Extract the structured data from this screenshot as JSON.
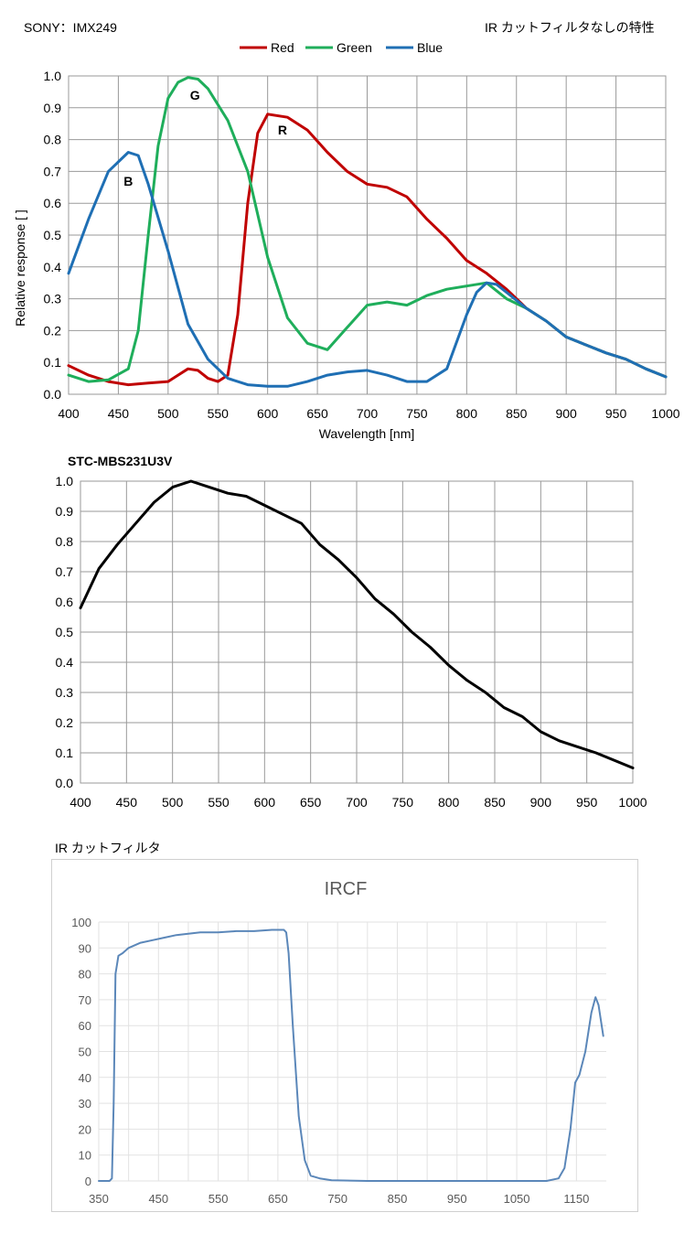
{
  "header": {
    "left": "SONY：IMX249",
    "right": "IR カットフィルタなしの特性"
  },
  "colors": {
    "red": "#c00000",
    "green": "#1fae5b",
    "blue": "#1f6fb4",
    "mono": "#000000",
    "ircf": "#5b87b9"
  },
  "chart_data": [
    {
      "type": "line",
      "title": "",
      "xlabel": "Wavelength [nm]",
      "ylabel": "Relative response [ ]",
      "xlim": [
        400,
        1000
      ],
      "ylim": [
        0,
        1.0
      ],
      "x_ticks": [
        "400",
        "450",
        "500",
        "550",
        "600",
        "650",
        "700",
        "750",
        "800",
        "850",
        "900",
        "950",
        "1000"
      ],
      "y_ticks": [
        "0.0",
        "0.1",
        "0.2",
        "0.3",
        "0.4",
        "0.5",
        "0.6",
        "0.7",
        "0.8",
        "0.9",
        "1.0"
      ],
      "grid": true,
      "legend": "top-center",
      "series": [
        {
          "name": "Red",
          "color": "#c00000",
          "x": [
            400,
            420,
            440,
            460,
            480,
            500,
            510,
            520,
            530,
            540,
            550,
            560,
            570,
            580,
            590,
            600,
            620,
            640,
            660,
            680,
            700,
            720,
            740,
            760,
            780,
            800,
            820,
            840,
            860,
            880,
            900,
            920,
            940,
            960,
            980,
            1000
          ],
          "y": [
            0.09,
            0.06,
            0.04,
            0.03,
            0.035,
            0.04,
            0.06,
            0.08,
            0.075,
            0.05,
            0.04,
            0.06,
            0.25,
            0.6,
            0.82,
            0.88,
            0.87,
            0.83,
            0.76,
            0.7,
            0.66,
            0.65,
            0.62,
            0.55,
            0.49,
            0.42,
            0.38,
            0.33,
            0.27,
            0.23,
            0.18,
            0.155,
            0.13,
            0.11,
            0.08,
            0.055
          ]
        },
        {
          "name": "Green",
          "color": "#1fae5b",
          "x": [
            400,
            420,
            440,
            460,
            470,
            480,
            490,
            500,
            510,
            520,
            530,
            540,
            560,
            580,
            600,
            620,
            640,
            660,
            680,
            700,
            720,
            740,
            760,
            780,
            800,
            820,
            840,
            860,
            880,
            900,
            920,
            940,
            960,
            980,
            1000
          ],
          "y": [
            0.06,
            0.04,
            0.045,
            0.08,
            0.2,
            0.5,
            0.78,
            0.93,
            0.98,
            0.995,
            0.99,
            0.96,
            0.86,
            0.7,
            0.43,
            0.24,
            0.16,
            0.14,
            0.21,
            0.28,
            0.29,
            0.28,
            0.31,
            0.33,
            0.34,
            0.35,
            0.3,
            0.27,
            0.23,
            0.18,
            0.155,
            0.13,
            0.11,
            0.08,
            0.055
          ]
        },
        {
          "name": "Blue",
          "color": "#1f6fb4",
          "x": [
            400,
            420,
            440,
            460,
            470,
            480,
            500,
            520,
            540,
            560,
            580,
            600,
            620,
            640,
            660,
            680,
            700,
            720,
            740,
            760,
            780,
            800,
            810,
            820,
            830,
            840,
            860,
            880,
            900,
            920,
            940,
            960,
            980,
            1000
          ],
          "y": [
            0.38,
            0.55,
            0.7,
            0.76,
            0.75,
            0.66,
            0.45,
            0.22,
            0.11,
            0.05,
            0.03,
            0.025,
            0.025,
            0.04,
            0.06,
            0.07,
            0.075,
            0.06,
            0.04,
            0.04,
            0.08,
            0.25,
            0.32,
            0.35,
            0.345,
            0.32,
            0.27,
            0.23,
            0.18,
            0.155,
            0.13,
            0.11,
            0.08,
            0.055
          ]
        }
      ],
      "annotations": [
        {
          "text": "G",
          "x": 527,
          "y": 0.94
        },
        {
          "text": "R",
          "x": 615,
          "y": 0.83
        },
        {
          "text": "B",
          "x": 460,
          "y": 0.67
        }
      ]
    },
    {
      "type": "line",
      "title": "STC-MBS231U3V",
      "xlim": [
        400,
        1000
      ],
      "ylim": [
        0,
        1.0
      ],
      "x_ticks": [
        "400",
        "450",
        "500",
        "550",
        "600",
        "650",
        "700",
        "750",
        "800",
        "850",
        "900",
        "950",
        "1000"
      ],
      "y_ticks": [
        "0.0",
        "0.1",
        "0.2",
        "0.3",
        "0.4",
        "0.5",
        "0.6",
        "0.7",
        "0.8",
        "0.9",
        "1.0"
      ],
      "grid": true,
      "series": [
        {
          "name": "",
          "color": "#000000",
          "x": [
            400,
            420,
            440,
            460,
            480,
            500,
            520,
            540,
            560,
            580,
            600,
            620,
            640,
            660,
            680,
            700,
            720,
            740,
            760,
            780,
            800,
            820,
            840,
            860,
            880,
            900,
            920,
            940,
            960,
            980,
            1000
          ],
          "y": [
            0.58,
            0.71,
            0.79,
            0.86,
            0.93,
            0.98,
            1.0,
            0.98,
            0.96,
            0.95,
            0.92,
            0.89,
            0.86,
            0.79,
            0.74,
            0.68,
            0.61,
            0.56,
            0.5,
            0.45,
            0.39,
            0.34,
            0.3,
            0.25,
            0.22,
            0.17,
            0.14,
            0.12,
            0.1,
            0.075,
            0.05
          ]
        }
      ]
    },
    {
      "type": "line",
      "title": "IRCF",
      "caption": "IR カットフィルタ",
      "xlim": [
        350,
        1200
      ],
      "ylim": [
        0,
        100
      ],
      "x_ticks": [
        "350",
        "450",
        "550",
        "650",
        "750",
        "850",
        "950",
        "1050",
        "1150"
      ],
      "y_ticks": [
        "0",
        "10",
        "20",
        "30",
        "40",
        "50",
        "60",
        "70",
        "80",
        "90",
        "100"
      ],
      "grid": true,
      "series": [
        {
          "name": "",
          "color": "#5b87b9",
          "x": [
            350,
            360,
            368,
            372,
            375,
            378,
            383,
            390,
            400,
            420,
            440,
            460,
            480,
            500,
            520,
            550,
            580,
            610,
            640,
            660,
            664,
            668,
            675,
            685,
            695,
            705,
            720,
            740,
            800,
            900,
            1000,
            1100,
            1120,
            1130,
            1140,
            1148,
            1155,
            1165,
            1175,
            1182,
            1187,
            1195
          ],
          "y": [
            0,
            0,
            0,
            1,
            30,
            80,
            87,
            88,
            90,
            92,
            93,
            94,
            95,
            95.5,
            96,
            96,
            96.5,
            96.5,
            97,
            97,
            96,
            88,
            60,
            25,
            8,
            2,
            1,
            0.3,
            0,
            0,
            0,
            0,
            1,
            5,
            20,
            38,
            41,
            50,
            65,
            71,
            68,
            56
          ]
        }
      ]
    }
  ]
}
